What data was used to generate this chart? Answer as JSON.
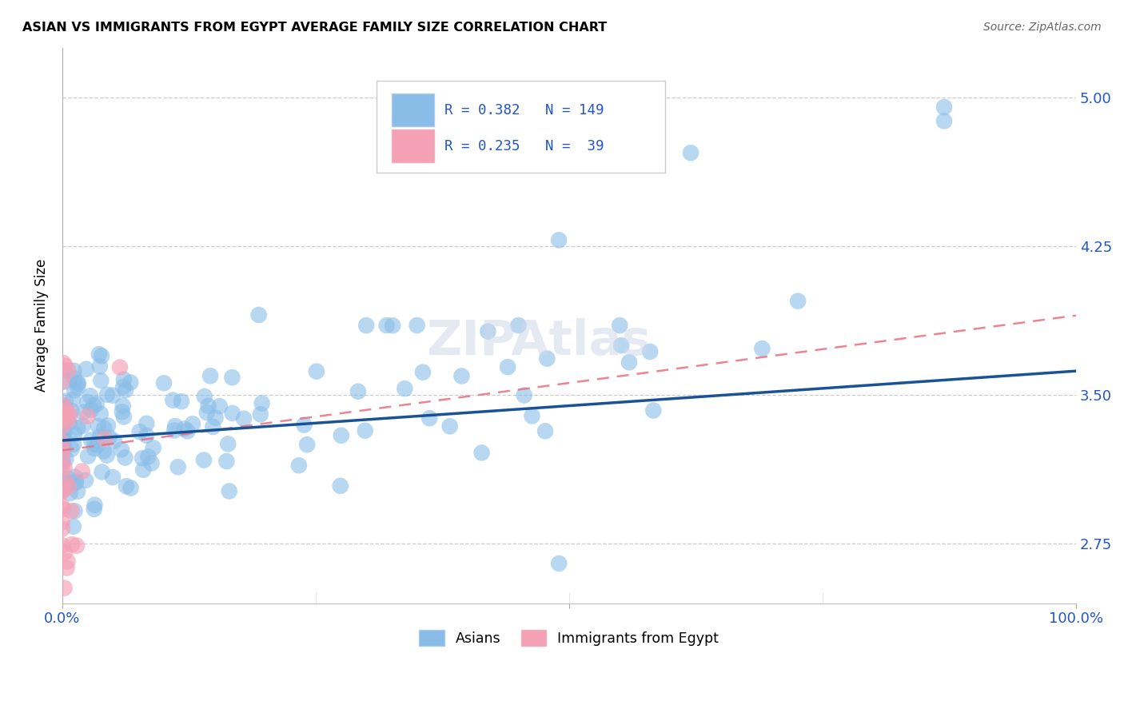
{
  "title": "ASIAN VS IMMIGRANTS FROM EGYPT AVERAGE FAMILY SIZE CORRELATION CHART",
  "source": "Source: ZipAtlas.com",
  "ylabel": "Average Family Size",
  "yticks": [
    2.75,
    3.5,
    4.25,
    5.0
  ],
  "ylim": [
    2.45,
    5.25
  ],
  "xlim": [
    0.0,
    1.0
  ],
  "legend_label1": "Asians",
  "legend_label2": "Immigrants from Egypt",
  "R1": 0.382,
  "N1": 149,
  "R2": 0.235,
  "N2": 39,
  "color_asian": "#89bde8",
  "color_egypt": "#f4a0b5",
  "color_blue_text": "#2255cc",
  "trendline1_color": "#1a5296",
  "trendline2_color": "#e87080",
  "watermark": "ZIPAtlas",
  "asian_trendline_x": [
    0.0,
    1.0
  ],
  "asian_trendline_y": [
    3.27,
    3.62
  ],
  "egypt_trendline_x": [
    0.0,
    1.0
  ],
  "egypt_trendline_y": [
    3.22,
    3.9
  ]
}
